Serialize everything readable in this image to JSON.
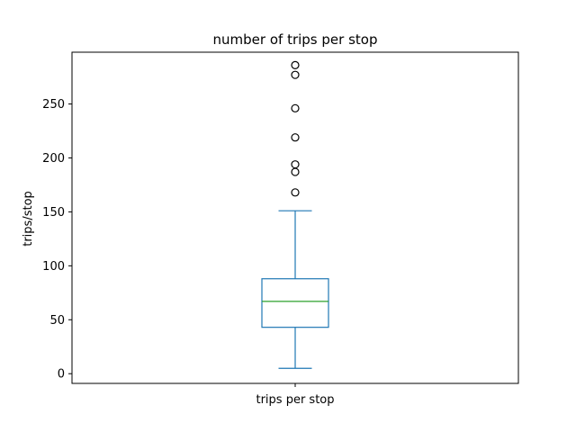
{
  "chart_data": {
    "type": "box",
    "title": "number of trips per stop",
    "xlabel": "",
    "ylabel": "trips/stop",
    "categories": [
      "trips per stop"
    ],
    "ylim": [
      -9,
      298
    ],
    "yticks": [
      0,
      50,
      100,
      150,
      200,
      250
    ],
    "ytick_labels": [
      "0",
      "50",
      "100",
      "150",
      "200",
      "250"
    ],
    "grid": false,
    "legend": "none",
    "boxes": [
      {
        "name": "trips per stop",
        "whisker_low": 5,
        "q1": 43,
        "median": 67,
        "q3": 88,
        "whisker_high": 151,
        "outliers": [
          168,
          187,
          194,
          219,
          246,
          277,
          286
        ]
      }
    ],
    "colors": {
      "box": "#1f77b4",
      "median": "#2ca02c",
      "outlier_edge": "#000000",
      "axes": "#000000"
    }
  }
}
